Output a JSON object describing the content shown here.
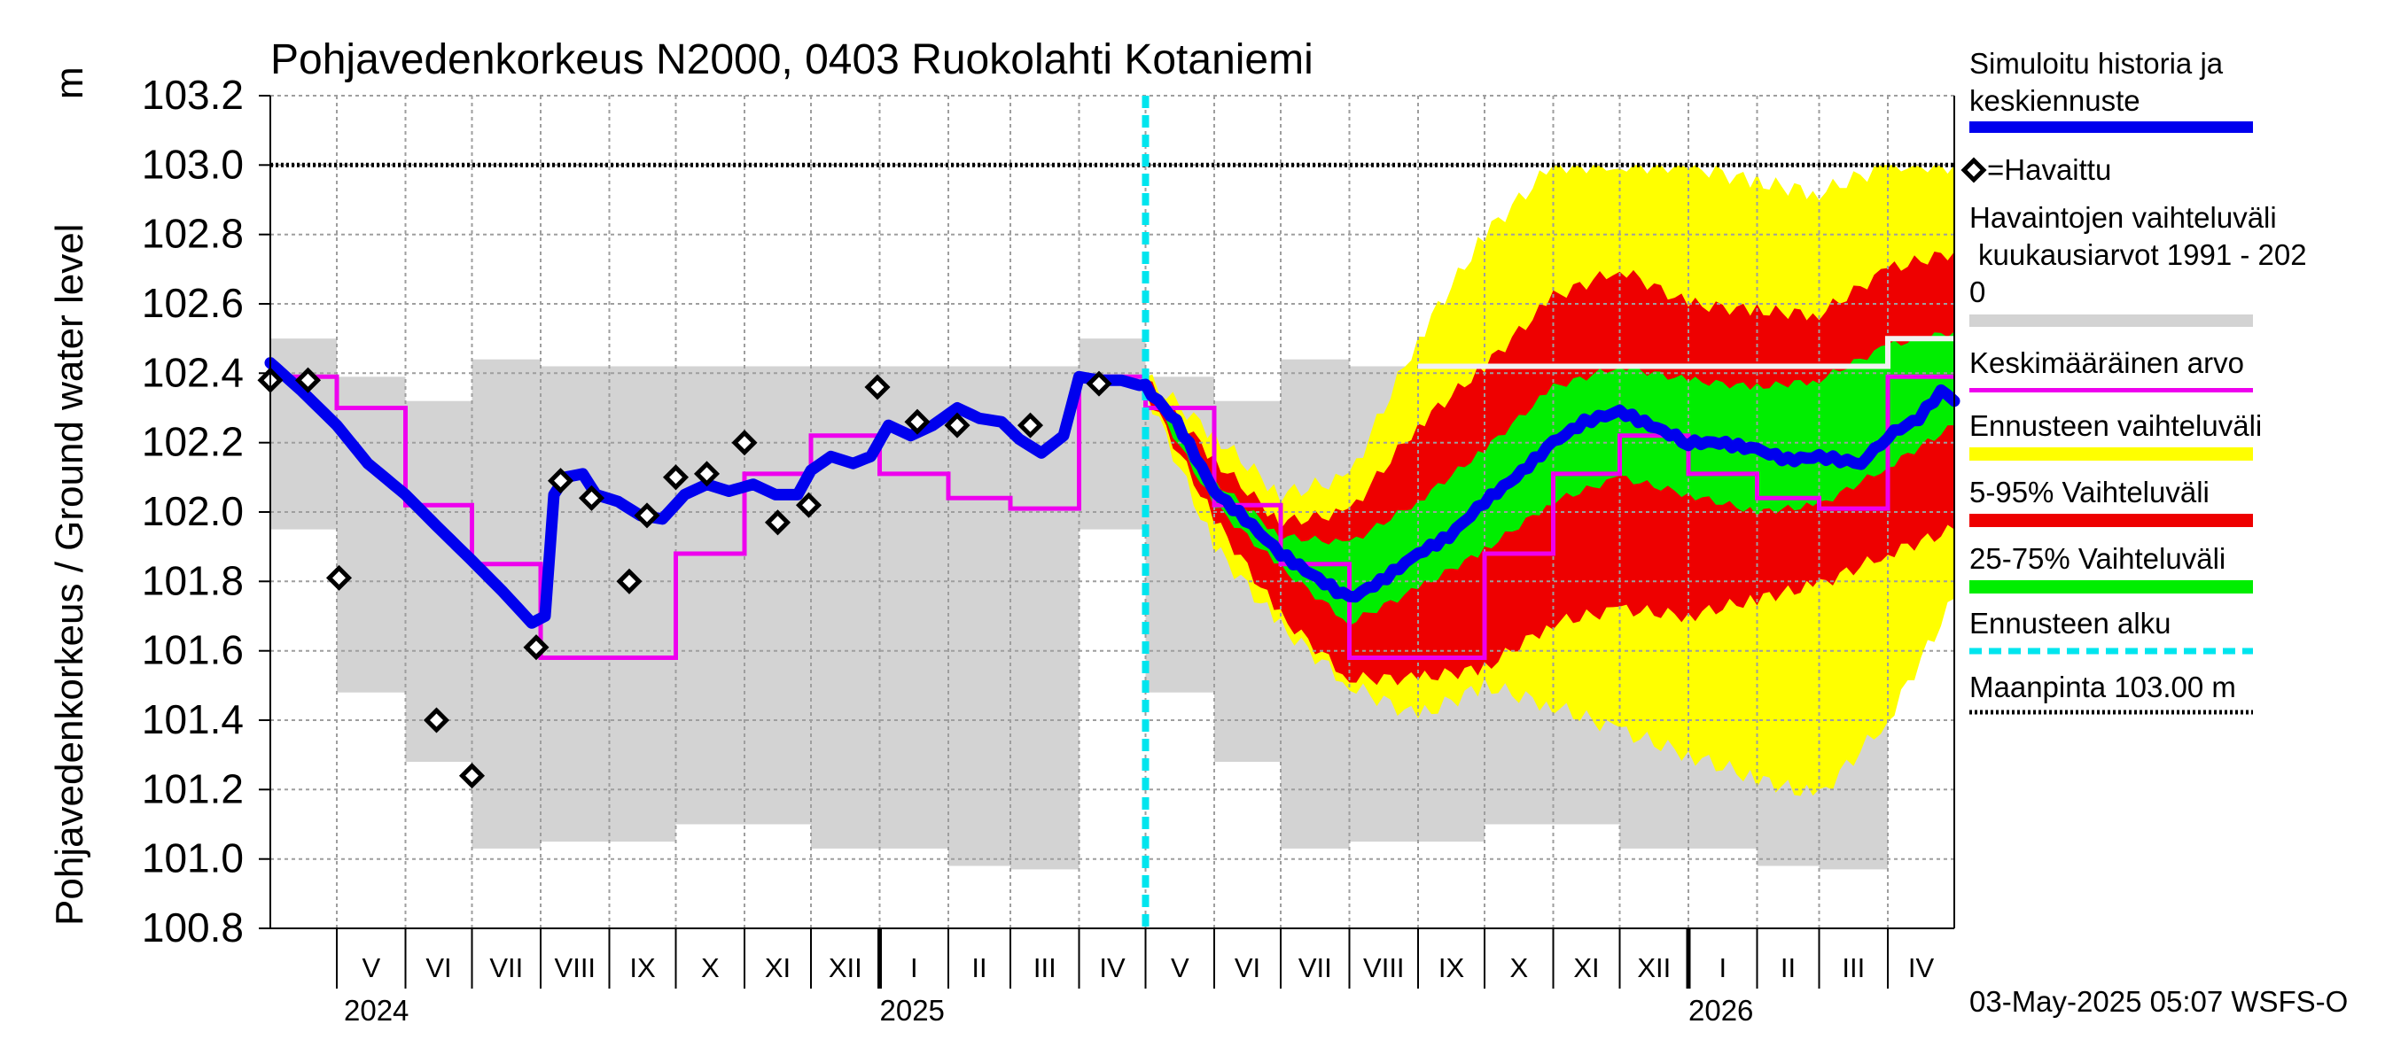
{
  "chart_data": {
    "type": "line",
    "title": "Pohjavedenkorkeus N2000, 0403 Ruokolahti Kotaniemi",
    "ylabel": "Pohjavedenkorkeus / Ground water level",
    "yunit": "m",
    "ylim": [
      100.8,
      103.2
    ],
    "y_ticks": [
      "103.2",
      "103.0",
      "102.8",
      "102.6",
      "102.4",
      "102.2",
      "102.0",
      "101.8",
      "101.6",
      "101.4",
      "101.2",
      "101.0",
      "100.8"
    ],
    "xlim": [
      "2024-04-01",
      "2026-05-01"
    ],
    "months": [
      {
        "label": "V",
        "start": "2024-05-01"
      },
      {
        "label": "VI",
        "start": "2024-06-01"
      },
      {
        "label": "VII",
        "start": "2024-07-01"
      },
      {
        "label": "VIII",
        "start": "2024-08-01"
      },
      {
        "label": "IX",
        "start": "2024-09-01"
      },
      {
        "label": "X",
        "start": "2024-10-01"
      },
      {
        "label": "XI",
        "start": "2024-11-01"
      },
      {
        "label": "XII",
        "start": "2024-12-01"
      },
      {
        "label": "I",
        "start": "2025-01-01"
      },
      {
        "label": "II",
        "start": "2025-02-01"
      },
      {
        "label": "III",
        "start": "2025-03-01"
      },
      {
        "label": "IV",
        "start": "2025-04-01"
      },
      {
        "label": "V",
        "start": "2025-05-01"
      },
      {
        "label": "VI",
        "start": "2025-06-01"
      },
      {
        "label": "VII",
        "start": "2025-07-01"
      },
      {
        "label": "VIII",
        "start": "2025-08-01"
      },
      {
        "label": "IX",
        "start": "2025-09-01"
      },
      {
        "label": "X",
        "start": "2025-10-01"
      },
      {
        "label": "XI",
        "start": "2025-11-01"
      },
      {
        "label": "XII",
        "start": "2025-12-01"
      },
      {
        "label": "I",
        "start": "2026-01-01"
      },
      {
        "label": "II",
        "start": "2026-02-01"
      },
      {
        "label": "III",
        "start": "2026-03-01"
      },
      {
        "label": "IV",
        "start": "2026-04-01"
      }
    ],
    "years": [
      {
        "label": "2024",
        "date": "2024-05-01"
      },
      {
        "label": "2025",
        "date": "2025-01-01"
      },
      {
        "label": "2026",
        "date": "2026-01-01"
      }
    ],
    "ground_level": 103.0,
    "forecast_start": "2025-05-01",
    "grid": true,
    "legend_position": "right",
    "legend": [
      {
        "label": "Simuloitu historia ja keskiennuste",
        "color": "#0000ee"
      },
      {
        "label": "=Havaittu",
        "color": "#000000"
      },
      {
        "label": "Havaintojen vaihteluväli kuukausiarvot 1991 - 2020",
        "color": "#d3d3d3"
      },
      {
        "label": "Keskimääräinen arvo",
        "color": "#ee00ee"
      },
      {
        "label": "Ennusteen vaihteluväli",
        "color": "#ffff00"
      },
      {
        "label": "5-95% Vaihteluväli",
        "color": "#ee0000"
      },
      {
        "label": "25-75% Vaihteluväli",
        "color": "#00ee00"
      },
      {
        "label": "Ennusteen alku",
        "color": "#00e5ee"
      },
      {
        "label": "Maanpinta 103.00 m",
        "color": "#000000"
      }
    ],
    "series": [
      {
        "name": "Havaintojen vaihteluväli kuukausiarvot 1991 - 2020",
        "type": "monthly_band",
        "color": "#d3d3d3",
        "monthly_ranges": [
          {
            "month": "IV",
            "lo": 101.95,
            "hi": 102.5
          },
          {
            "month": "V",
            "lo": 101.48,
            "hi": 102.39
          },
          {
            "month": "VI",
            "lo": 101.28,
            "hi": 102.32
          },
          {
            "month": "VII",
            "lo": 101.03,
            "hi": 102.44
          },
          {
            "month": "VIII",
            "lo": 101.05,
            "hi": 102.42
          },
          {
            "month": "IX",
            "lo": 101.05,
            "hi": 102.42
          },
          {
            "month": "X",
            "lo": 101.1,
            "hi": 102.42
          },
          {
            "month": "XI",
            "lo": 101.1,
            "hi": 102.42
          },
          {
            "month": "XII",
            "lo": 101.03,
            "hi": 102.42
          },
          {
            "month": "I",
            "lo": 101.03,
            "hi": 102.42
          },
          {
            "month": "II",
            "lo": 100.98,
            "hi": 102.42
          },
          {
            "month": "III",
            "lo": 100.97,
            "hi": 102.42
          }
        ]
      },
      {
        "name": "Keskimääräinen arvo",
        "type": "monthly_step",
        "color": "#ee00ee",
        "monthly_values": [
          {
            "month": "IV",
            "value": 102.39
          },
          {
            "month": "V",
            "value": 102.3
          },
          {
            "month": "VI",
            "value": 102.02
          },
          {
            "month": "VII",
            "value": 101.85
          },
          {
            "month": "VIII",
            "value": 101.58
          },
          {
            "month": "IX",
            "value": 101.58
          },
          {
            "month": "X",
            "value": 101.88
          },
          {
            "month": "XI",
            "value": 102.11
          },
          {
            "month": "XII",
            "value": 102.22
          },
          {
            "month": "I",
            "value": 102.11
          },
          {
            "month": "II",
            "value": 102.04
          },
          {
            "month": "III",
            "value": 102.01
          }
        ]
      },
      {
        "name": "Ennusteen vaihteluväli",
        "type": "band",
        "color": "#ffff00",
        "points": [
          {
            "x": "2025-05-01",
            "lo": 102.35,
            "hi": 102.39
          },
          {
            "x": "2025-06-01",
            "lo": 101.9,
            "hi": 102.22
          },
          {
            "x": "2025-07-01",
            "lo": 101.67,
            "hi": 102.05
          },
          {
            "x": "2025-08-01",
            "lo": 101.5,
            "hi": 102.1
          },
          {
            "x": "2025-09-01",
            "lo": 101.41,
            "hi": 102.5
          },
          {
            "x": "2025-10-01",
            "lo": 101.5,
            "hi": 102.8
          },
          {
            "x": "2025-11-01",
            "lo": 101.44,
            "hi": 103.0
          },
          {
            "x": "2025-12-01",
            "lo": 101.37,
            "hi": 103.0
          },
          {
            "x": "2026-01-01",
            "lo": 101.3,
            "hi": 103.0
          },
          {
            "x": "2026-02-01",
            "lo": 101.23,
            "hi": 102.95
          },
          {
            "x": "2026-03-01",
            "lo": 101.18,
            "hi": 102.92
          },
          {
            "x": "2026-04-01",
            "lo": 101.4,
            "hi": 103.0
          },
          {
            "x": "2026-05-01",
            "lo": 101.75,
            "hi": 103.0
          }
        ]
      },
      {
        "name": "5-95% Vaihteluväli",
        "type": "band",
        "color": "#ee0000",
        "points": [
          {
            "x": "2025-05-01",
            "lo": 102.35,
            "hi": 102.38
          },
          {
            "x": "2025-06-01",
            "lo": 101.98,
            "hi": 102.15
          },
          {
            "x": "2025-07-01",
            "lo": 101.7,
            "hi": 101.97
          },
          {
            "x": "2025-08-01",
            "lo": 101.52,
            "hi": 102.0
          },
          {
            "x": "2025-09-01",
            "lo": 101.52,
            "hi": 102.25
          },
          {
            "x": "2025-10-01",
            "lo": 101.55,
            "hi": 102.42
          },
          {
            "x": "2025-11-01",
            "lo": 101.68,
            "hi": 102.62
          },
          {
            "x": "2025-12-01",
            "lo": 101.72,
            "hi": 102.7
          },
          {
            "x": "2026-01-01",
            "lo": 101.7,
            "hi": 102.6
          },
          {
            "x": "2026-02-01",
            "lo": 101.75,
            "hi": 102.58
          },
          {
            "x": "2026-03-01",
            "lo": 101.79,
            "hi": 102.57
          },
          {
            "x": "2026-04-01",
            "lo": 101.88,
            "hi": 102.7
          },
          {
            "x": "2026-05-01",
            "lo": 101.95,
            "hi": 102.75
          }
        ]
      },
      {
        "name": "25-75% Vaihteluväli",
        "type": "band",
        "color": "#00ee00",
        "points": [
          {
            "x": "2025-05-01",
            "lo": 102.36,
            "hi": 102.37
          },
          {
            "x": "2025-06-01",
            "lo": 102.02,
            "hi": 102.09
          },
          {
            "x": "2025-07-01",
            "lo": 101.84,
            "hi": 101.93
          },
          {
            "x": "2025-08-01",
            "lo": 101.68,
            "hi": 101.91
          },
          {
            "x": "2025-09-01",
            "lo": 101.78,
            "hi": 102.03
          },
          {
            "x": "2025-10-01",
            "lo": 101.89,
            "hi": 102.18
          },
          {
            "x": "2025-11-01",
            "lo": 102.03,
            "hi": 102.36
          },
          {
            "x": "2025-12-01",
            "lo": 102.1,
            "hi": 102.42
          },
          {
            "x": "2026-01-01",
            "lo": 102.05,
            "hi": 102.38
          },
          {
            "x": "2026-02-01",
            "lo": 102.0,
            "hi": 102.36
          },
          {
            "x": "2026-03-01",
            "lo": 102.02,
            "hi": 102.38
          },
          {
            "x": "2026-04-01",
            "lo": 102.13,
            "hi": 102.48
          },
          {
            "x": "2026-05-01",
            "lo": 102.25,
            "hi": 102.52
          }
        ]
      },
      {
        "name": "Simuloitu historia ja keskiennuste",
        "type": "line",
        "color": "#0000ee",
        "points": [
          {
            "x": "2024-04-01",
            "y": 102.43
          },
          {
            "x": "2024-04-15",
            "y": 102.35
          },
          {
            "x": "2024-05-01",
            "y": 102.25
          },
          {
            "x": "2024-05-15",
            "y": 102.14
          },
          {
            "x": "2024-06-01",
            "y": 102.05
          },
          {
            "x": "2024-06-15",
            "y": 101.96
          },
          {
            "x": "2024-07-01",
            "y": 101.86
          },
          {
            "x": "2024-07-15",
            "y": 101.77
          },
          {
            "x": "2024-07-28",
            "y": 101.68
          },
          {
            "x": "2024-08-03",
            "y": 101.7
          },
          {
            "x": "2024-08-07",
            "y": 102.05
          },
          {
            "x": "2024-08-12",
            "y": 102.1
          },
          {
            "x": "2024-08-20",
            "y": 102.11
          },
          {
            "x": "2024-08-26",
            "y": 102.05
          },
          {
            "x": "2024-09-05",
            "y": 102.03
          },
          {
            "x": "2024-09-15",
            "y": 101.99
          },
          {
            "x": "2024-09-25",
            "y": 101.98
          },
          {
            "x": "2024-10-05",
            "y": 102.05
          },
          {
            "x": "2024-10-15",
            "y": 102.08
          },
          {
            "x": "2024-10-25",
            "y": 102.06
          },
          {
            "x": "2024-11-05",
            "y": 102.08
          },
          {
            "x": "2024-11-15",
            "y": 102.05
          },
          {
            "x": "2024-11-25",
            "y": 102.05
          },
          {
            "x": "2024-12-01",
            "y": 102.12
          },
          {
            "x": "2024-12-10",
            "y": 102.16
          },
          {
            "x": "2024-12-20",
            "y": 102.14
          },
          {
            "x": "2024-12-28",
            "y": 102.16
          },
          {
            "x": "2025-01-05",
            "y": 102.25
          },
          {
            "x": "2025-01-15",
            "y": 102.22
          },
          {
            "x": "2025-01-25",
            "y": 102.25
          },
          {
            "x": "2025-02-05",
            "y": 102.3
          },
          {
            "x": "2025-02-15",
            "y": 102.27
          },
          {
            "x": "2025-02-25",
            "y": 102.26
          },
          {
            "x": "2025-03-05",
            "y": 102.21
          },
          {
            "x": "2025-03-15",
            "y": 102.17
          },
          {
            "x": "2025-03-25",
            "y": 102.22
          },
          {
            "x": "2025-04-01",
            "y": 102.39
          },
          {
            "x": "2025-04-10",
            "y": 102.38
          },
          {
            "x": "2025-04-20",
            "y": 102.38
          },
          {
            "x": "2025-05-01",
            "y": 102.36
          },
          {
            "x": "2025-05-15",
            "y": 102.26
          },
          {
            "x": "2025-06-01",
            "y": 102.06
          },
          {
            "x": "2025-06-15",
            "y": 101.98
          },
          {
            "x": "2025-07-01",
            "y": 101.88
          },
          {
            "x": "2025-07-15",
            "y": 101.82
          },
          {
            "x": "2025-08-01",
            "y": 101.75
          },
          {
            "x": "2025-08-15",
            "y": 101.8
          },
          {
            "x": "2025-09-01",
            "y": 101.88
          },
          {
            "x": "2025-09-15",
            "y": 101.93
          },
          {
            "x": "2025-10-01",
            "y": 102.03
          },
          {
            "x": "2025-10-15",
            "y": 102.1
          },
          {
            "x": "2025-11-01",
            "y": 102.2
          },
          {
            "x": "2025-11-15",
            "y": 102.26
          },
          {
            "x": "2025-12-01",
            "y": 102.29
          },
          {
            "x": "2025-12-15",
            "y": 102.25
          },
          {
            "x": "2026-01-01",
            "y": 102.2
          },
          {
            "x": "2026-01-15",
            "y": 102.2
          },
          {
            "x": "2026-02-01",
            "y": 102.18
          },
          {
            "x": "2026-02-15",
            "y": 102.15
          },
          {
            "x": "2026-03-01",
            "y": 102.16
          },
          {
            "x": "2026-03-20",
            "y": 102.14
          },
          {
            "x": "2026-04-01",
            "y": 102.22
          },
          {
            "x": "2026-04-15",
            "y": 102.27
          },
          {
            "x": "2026-04-25",
            "y": 102.35
          },
          {
            "x": "2026-05-01",
            "y": 102.32
          }
        ]
      },
      {
        "name": "=Havaittu",
        "type": "scatter",
        "marker": "diamond",
        "color": "#000000",
        "points": [
          {
            "x": "2024-04-01",
            "y": 102.38
          },
          {
            "x": "2024-04-18",
            "y": 102.38
          },
          {
            "x": "2024-05-02",
            "y": 101.81
          },
          {
            "x": "2024-06-15",
            "y": 101.4
          },
          {
            "x": "2024-07-01",
            "y": 101.24
          },
          {
            "x": "2024-07-30",
            "y": 101.61
          },
          {
            "x": "2024-08-10",
            "y": 102.09
          },
          {
            "x": "2024-08-24",
            "y": 102.04
          },
          {
            "x": "2024-09-10",
            "y": 101.8
          },
          {
            "x": "2024-09-18",
            "y": 101.99
          },
          {
            "x": "2024-10-01",
            "y": 102.1
          },
          {
            "x": "2024-10-15",
            "y": 102.11
          },
          {
            "x": "2024-11-01",
            "y": 102.2
          },
          {
            "x": "2024-11-16",
            "y": 101.97
          },
          {
            "x": "2024-11-30",
            "y": 102.02
          },
          {
            "x": "2024-12-31",
            "y": 102.36
          },
          {
            "x": "2025-01-18",
            "y": 102.26
          },
          {
            "x": "2025-02-05",
            "y": 102.25
          },
          {
            "x": "2025-03-10",
            "y": 102.25
          },
          {
            "x": "2025-04-10",
            "y": 102.37
          }
        ]
      }
    ]
  },
  "footer": {
    "timestamp": "03-May-2025 05:07 WSFS-O"
  }
}
